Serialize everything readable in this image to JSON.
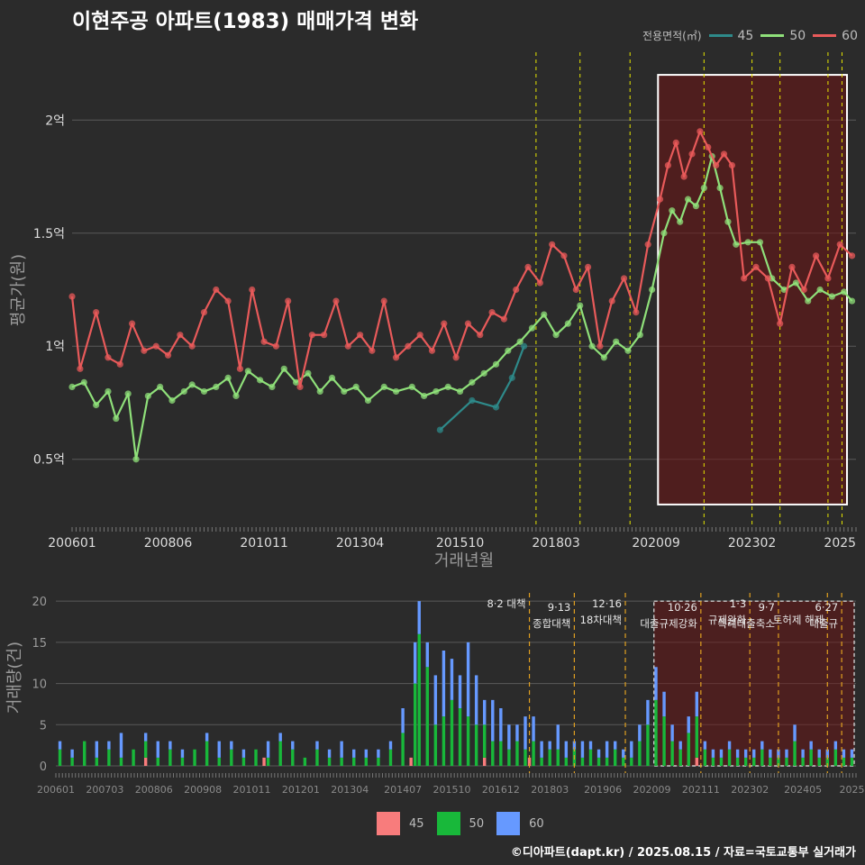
{
  "title": "이현주공 아파트(1983) 매매가격 변화",
  "credit": "©디아파트(dapt.kr) / 2025.08.15 / 자료=국토교통부 실거래가",
  "legend": {
    "title": "전용면적(㎡)",
    "items": [
      {
        "label": "45",
        "color": "#2e8a8a"
      },
      {
        "label": "50",
        "color": "#8fe07a"
      },
      {
        "label": "60",
        "color": "#e85a5a"
      }
    ]
  },
  "bar_legend": [
    {
      "label": "45",
      "color": "#f87c7c"
    },
    {
      "label": "50",
      "color": "#18b83a"
    },
    {
      "label": "60",
      "color": "#6699ff"
    }
  ],
  "chart_data": [
    {
      "type": "line",
      "title": "이현주공 아파트(1983) 매매가격 변화",
      "xlabel": "거래년월",
      "ylabel": "평균가(원)",
      "xlim": [
        2006.0,
        2025.6
      ],
      "ylim": [
        0.2,
        2.3
      ],
      "x_ticks": [
        {
          "x": 2006.0,
          "label": "200601"
        },
        {
          "x": 2008.4,
          "label": "200806"
        },
        {
          "x": 2010.8,
          "label": "201011"
        },
        {
          "x": 2013.2,
          "label": "201304"
        },
        {
          "x": 2015.7,
          "label": "201510"
        },
        {
          "x": 2018.1,
          "label": "201803"
        },
        {
          "x": 2020.6,
          "label": "202009"
        },
        {
          "x": 2023.0,
          "label": "202302"
        },
        {
          "x": 2025.2,
          "label": "2025"
        }
      ],
      "y_ticks": [
        {
          "y": 0.5,
          "label": "0.5억"
        },
        {
          "y": 1.0,
          "label": "1억"
        },
        {
          "y": 1.5,
          "label": "1.5억"
        },
        {
          "y": 2.0,
          "label": "2억"
        }
      ],
      "policy_lines": [
        2017.6,
        2018.7,
        2019.95,
        2021.8,
        2023.0,
        2023.7,
        2024.9,
        2025.25
      ],
      "highlight": {
        "x0": 2020.65,
        "x1": 2025.6,
        "y0": 0.3,
        "y1": 2.2
      },
      "series": [
        {
          "name": "45",
          "color": "#2e8a8a",
          "x": [
            2015.2,
            2016.0,
            2016.6,
            2017.0,
            2017.3
          ],
          "y": [
            0.63,
            0.76,
            0.73,
            0.86,
            1.0
          ]
        },
        {
          "name": "50",
          "color": "#8fe07a",
          "x": [
            2006.0,
            2006.3,
            2006.6,
            2006.9,
            2007.1,
            2007.4,
            2007.6,
            2007.9,
            2008.2,
            2008.5,
            2008.8,
            2009.0,
            2009.3,
            2009.6,
            2009.9,
            2010.1,
            2010.4,
            2010.7,
            2011.0,
            2011.3,
            2011.6,
            2011.9,
            2012.2,
            2012.5,
            2012.8,
            2013.1,
            2013.4,
            2013.8,
            2014.1,
            2014.5,
            2014.8,
            2015.1,
            2015.4,
            2015.7,
            2016.0,
            2016.3,
            2016.6,
            2016.9,
            2017.2,
            2017.5,
            2017.8,
            2018.1,
            2018.4,
            2018.7,
            2019.0,
            2019.3,
            2019.6,
            2019.9,
            2020.2,
            2020.5,
            2020.8,
            2021.0,
            2021.2,
            2021.4,
            2021.6,
            2021.8,
            2022.0,
            2022.2,
            2022.4,
            2022.6,
            2022.9,
            2023.2,
            2023.5,
            2023.8,
            2024.1,
            2024.4,
            2024.7,
            2025.0,
            2025.3,
            2025.5
          ],
          "y": [
            0.82,
            0.84,
            0.74,
            0.8,
            0.68,
            0.79,
            0.5,
            0.78,
            0.82,
            0.76,
            0.8,
            0.83,
            0.8,
            0.82,
            0.86,
            0.78,
            0.89,
            0.85,
            0.82,
            0.9,
            0.84,
            0.88,
            0.8,
            0.86,
            0.8,
            0.82,
            0.76,
            0.82,
            0.8,
            0.82,
            0.78,
            0.8,
            0.82,
            0.8,
            0.84,
            0.88,
            0.92,
            0.98,
            1.02,
            1.08,
            1.14,
            1.05,
            1.1,
            1.18,
            1.0,
            0.95,
            1.02,
            0.98,
            1.05,
            1.25,
            1.5,
            1.6,
            1.55,
            1.65,
            1.62,
            1.7,
            1.84,
            1.7,
            1.55,
            1.45,
            1.46,
            1.46,
            1.3,
            1.25,
            1.28,
            1.2,
            1.25,
            1.22,
            1.24,
            1.2
          ]
        },
        {
          "name": "60",
          "color": "#e85a5a",
          "x": [
            2006.0,
            2006.2,
            2006.6,
            2006.9,
            2007.2,
            2007.5,
            2007.8,
            2008.1,
            2008.4,
            2008.7,
            2009.0,
            2009.3,
            2009.6,
            2009.9,
            2010.2,
            2010.5,
            2010.8,
            2011.1,
            2011.4,
            2011.7,
            2012.0,
            2012.3,
            2012.6,
            2012.9,
            2013.2,
            2013.5,
            2013.8,
            2014.1,
            2014.4,
            2014.7,
            2015.0,
            2015.3,
            2015.6,
            2015.9,
            2016.2,
            2016.5,
            2016.8,
            2017.1,
            2017.4,
            2017.7,
            2018.0,
            2018.3,
            2018.6,
            2018.9,
            2019.2,
            2019.5,
            2019.8,
            2020.1,
            2020.4,
            2020.7,
            2020.9,
            2021.1,
            2021.3,
            2021.5,
            2021.7,
            2021.9,
            2022.1,
            2022.3,
            2022.5,
            2022.8,
            2023.1,
            2023.4,
            2023.7,
            2024.0,
            2024.3,
            2024.6,
            2024.9,
            2025.2,
            2025.5
          ],
          "y": [
            1.22,
            0.9,
            1.15,
            0.95,
            0.92,
            1.1,
            0.98,
            1.0,
            0.96,
            1.05,
            1.0,
            1.15,
            1.25,
            1.2,
            0.9,
            1.25,
            1.02,
            1.0,
            1.2,
            0.82,
            1.05,
            1.05,
            1.2,
            1.0,
            1.05,
            0.98,
            1.2,
            0.95,
            1.0,
            1.05,
            0.98,
            1.1,
            0.95,
            1.1,
            1.05,
            1.15,
            1.12,
            1.25,
            1.35,
            1.28,
            1.45,
            1.4,
            1.25,
            1.35,
            1.0,
            1.2,
            1.3,
            1.15,
            1.45,
            1.65,
            1.8,
            1.9,
            1.75,
            1.85,
            1.95,
            1.88,
            1.8,
            1.85,
            1.8,
            1.3,
            1.35,
            1.3,
            1.1,
            1.35,
            1.25,
            1.4,
            1.3,
            1.45,
            1.4
          ]
        }
      ]
    },
    {
      "type": "bar",
      "ylabel": "거래량(건)",
      "stacked": true,
      "xlim": [
        2006.0,
        2025.6
      ],
      "ylim": [
        0,
        21
      ],
      "x_ticks": [
        {
          "x": 2006.0,
          "label": "200601"
        },
        {
          "x": 2007.2,
          "label": "200703"
        },
        {
          "x": 2008.4,
          "label": "200806"
        },
        {
          "x": 2009.6,
          "label": "200908"
        },
        {
          "x": 2010.8,
          "label": "201011"
        },
        {
          "x": 2012.0,
          "label": "201201"
        },
        {
          "x": 2013.2,
          "label": "201304"
        },
        {
          "x": 2014.5,
          "label": "201407"
        },
        {
          "x": 2015.7,
          "label": "201510"
        },
        {
          "x": 2016.9,
          "label": "201612"
        },
        {
          "x": 2018.1,
          "label": "201803"
        },
        {
          "x": 2019.4,
          "label": "201906"
        },
        {
          "x": 2020.6,
          "label": "202009"
        },
        {
          "x": 2021.8,
          "label": "202111"
        },
        {
          "x": 2023.0,
          "label": "202302"
        },
        {
          "x": 2024.3,
          "label": "202405"
        },
        {
          "x": 2025.5,
          "label": "2025"
        }
      ],
      "y_ticks": [
        0,
        5,
        10,
        15,
        20
      ],
      "highlight": {
        "x0": 2020.65,
        "x1": 2025.6,
        "y0": 0,
        "y1": 20
      },
      "policies": [
        {
          "x": 2017.6,
          "label": "8·2 대책",
          "sub": ""
        },
        {
          "x": 2018.7,
          "label": "9·13",
          "sub": "종합대책"
        },
        {
          "x": 2019.95,
          "label": "12·16",
          "sub": "18차대책"
        },
        {
          "x": 2021.8,
          "label": "10·26",
          "sub": "대출규제강화"
        },
        {
          "x": 2023.0,
          "label": "1·3",
          "sub": "규제완화"
        },
        {
          "x": 2023.7,
          "label": "9·7",
          "sub": "특례대출축소"
        },
        {
          "x": 2024.9,
          "label": "",
          "sub": "토허제 해제"
        },
        {
          "x": 2025.25,
          "label": "6·27",
          "sub": "대출규"
        }
      ],
      "series": [
        {
          "name": "45",
          "color": "#f87c7c",
          "x": [
            2008.2,
            2011.1,
            2014.7,
            2016.5,
            2017.6,
            2021.7
          ],
          "values": [
            1,
            1,
            1,
            1,
            1,
            1
          ]
        },
        {
          "name": "50",
          "color": "#18b83a",
          "x": [
            2006.1,
            2006.4,
            2006.7,
            2007.0,
            2007.3,
            2007.6,
            2007.9,
            2008.2,
            2008.5,
            2008.8,
            2009.1,
            2009.4,
            2009.7,
            2010.0,
            2010.3,
            2010.6,
            2010.9,
            2011.2,
            2011.5,
            2011.8,
            2012.1,
            2012.4,
            2012.7,
            2013.0,
            2013.3,
            2013.6,
            2013.9,
            2014.2,
            2014.5,
            2014.8,
            2014.9,
            2015.1,
            2015.3,
            2015.5,
            2015.7,
            2015.9,
            2016.1,
            2016.3,
            2016.5,
            2016.7,
            2016.9,
            2017.1,
            2017.3,
            2017.5,
            2017.7,
            2017.9,
            2018.1,
            2018.3,
            2018.5,
            2018.7,
            2018.9,
            2019.1,
            2019.3,
            2019.5,
            2019.7,
            2019.9,
            2020.1,
            2020.3,
            2020.5,
            2020.7,
            2020.9,
            2021.1,
            2021.3,
            2021.5,
            2021.7,
            2021.9,
            2022.1,
            2022.3,
            2022.5,
            2022.7,
            2022.9,
            2023.1,
            2023.3,
            2023.5,
            2023.7,
            2023.9,
            2024.1,
            2024.3,
            2024.5,
            2024.7,
            2024.9,
            2025.1,
            2025.3,
            2025.5
          ],
          "values": [
            2,
            1,
            3,
            1,
            2,
            1,
            2,
            2,
            1,
            2,
            1,
            2,
            3,
            1,
            2,
            1,
            2,
            1,
            3,
            2,
            1,
            2,
            1,
            1,
            1,
            1,
            1,
            2,
            4,
            10,
            16,
            12,
            5,
            6,
            8,
            7,
            6,
            5,
            4,
            3,
            3,
            2,
            3,
            2,
            3,
            1,
            2,
            2,
            1,
            2,
            1,
            2,
            1,
            1,
            2,
            1,
            1,
            3,
            5,
            8,
            6,
            3,
            2,
            4,
            5,
            2,
            1,
            1,
            2,
            1,
            1,
            1,
            2,
            1,
            1,
            1,
            3,
            1,
            2,
            1,
            1,
            2,
            1,
            1
          ]
        },
        {
          "name": "60",
          "color": "#6699ff",
          "x": [
            2006.1,
            2006.4,
            2006.7,
            2007.0,
            2007.3,
            2007.6,
            2007.9,
            2008.2,
            2008.5,
            2008.8,
            2009.1,
            2009.4,
            2009.7,
            2010.0,
            2010.3,
            2010.6,
            2010.9,
            2011.2,
            2011.5,
            2011.8,
            2012.1,
            2012.4,
            2012.7,
            2013.0,
            2013.3,
            2013.6,
            2013.9,
            2014.2,
            2014.5,
            2014.8,
            2014.9,
            2015.1,
            2015.3,
            2015.5,
            2015.7,
            2015.9,
            2016.1,
            2016.3,
            2016.5,
            2016.7,
            2016.9,
            2017.1,
            2017.3,
            2017.5,
            2017.7,
            2017.9,
            2018.1,
            2018.3,
            2018.5,
            2018.7,
            2018.9,
            2019.1,
            2019.3,
            2019.5,
            2019.7,
            2019.9,
            2020.1,
            2020.3,
            2020.5,
            2020.7,
            2020.9,
            2021.1,
            2021.3,
            2021.5,
            2021.7,
            2021.9,
            2022.1,
            2022.3,
            2022.5,
            2022.7,
            2022.9,
            2023.1,
            2023.3,
            2023.5,
            2023.7,
            2023.9,
            2024.1,
            2024.3,
            2024.5,
            2024.7,
            2024.9,
            2025.1,
            2025.3,
            2025.5
          ],
          "values": [
            1,
            1,
            0,
            2,
            1,
            3,
            0,
            1,
            2,
            1,
            1,
            0,
            1,
            2,
            1,
            1,
            0,
            2,
            1,
            1,
            0,
            1,
            1,
            2,
            1,
            1,
            1,
            1,
            3,
            5,
            4,
            3,
            6,
            8,
            5,
            4,
            9,
            6,
            3,
            5,
            4,
            3,
            2,
            4,
            3,
            2,
            1,
            3,
            2,
            1,
            2,
            1,
            1,
            2,
            1,
            1,
            2,
            2,
            3,
            4,
            3,
            2,
            1,
            2,
            3,
            1,
            1,
            1,
            1,
            1,
            1,
            1,
            1,
            1,
            1,
            1,
            2,
            1,
            1,
            1,
            1,
            1,
            1,
            1
          ]
        }
      ]
    }
  ]
}
